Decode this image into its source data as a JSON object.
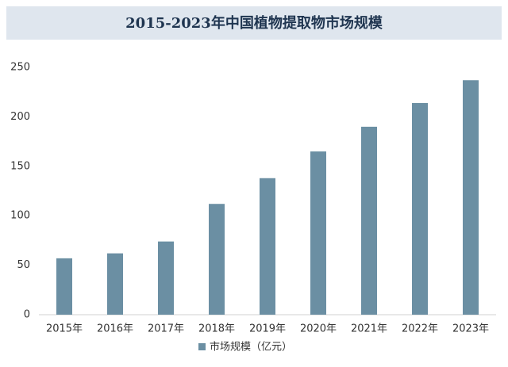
{
  "chart_data": {
    "type": "bar",
    "title": "2015-2023年中国植物提取物市场规模",
    "categories": [
      "2015年",
      "2016年",
      "2017年",
      "2018年",
      "2019年",
      "2020年",
      "2021年",
      "2022年",
      "2023年"
    ],
    "series": [
      {
        "name": "市场规模（亿元）",
        "color": "#6b8fa3",
        "values": [
          57,
          62,
          74,
          112,
          138,
          165,
          190,
          214,
          237
        ]
      }
    ],
    "ylim": [
      0,
      250
    ],
    "yticks": [
      0,
      50,
      100,
      150,
      200,
      250
    ],
    "grid": false
  }
}
